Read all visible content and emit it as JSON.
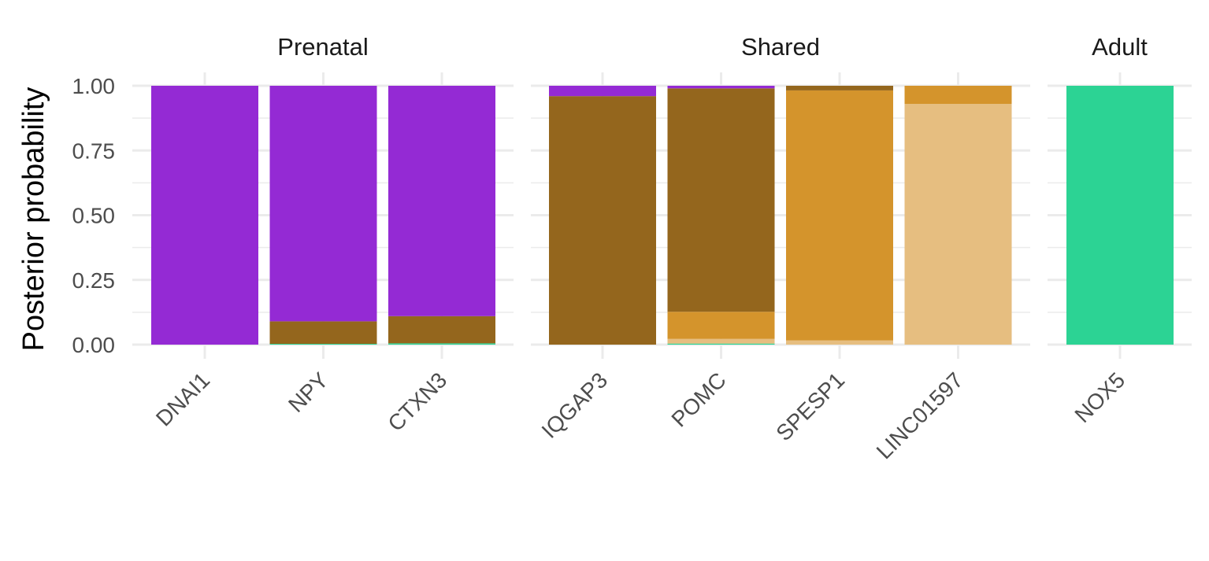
{
  "chart_data": {
    "type": "bar",
    "stacked": true,
    "ylabel": "Posterior probability",
    "xlabel": "",
    "ylim": [
      0,
      1
    ],
    "y_ticks": [
      "0.00",
      "0.25",
      "0.50",
      "0.75",
      "1.00"
    ],
    "grid": true,
    "legend": "none",
    "series_colors": [
      "#2cd394",
      "#e6be80",
      "#d4942c",
      "#94661d",
      "#942ad4"
    ],
    "panels": [
      {
        "title": "Prenatal",
        "categories": [
          "DNAI1",
          "NPY",
          "CTXN3"
        ],
        "stacks": [
          [
            {
              "value": 1.0,
              "color": "#942ad4"
            }
          ],
          [
            {
              "value": 0.003,
              "color": "#2cd394"
            },
            {
              "value": 0.087,
              "color": "#94661d"
            },
            {
              "value": 0.91,
              "color": "#942ad4"
            }
          ],
          [
            {
              "value": 0.005,
              "color": "#2cd394"
            },
            {
              "value": 0.105,
              "color": "#94661d"
            },
            {
              "value": 0.89,
              "color": "#942ad4"
            }
          ]
        ]
      },
      {
        "title": "Shared",
        "categories": [
          "IQGAP3",
          "POMC",
          "SPESP1",
          "LINC01597"
        ],
        "stacks": [
          [
            {
              "value": 0.96,
              "color": "#94661d"
            },
            {
              "value": 0.04,
              "color": "#942ad4"
            }
          ],
          [
            {
              "value": 0.004,
              "color": "#2cd394"
            },
            {
              "value": 0.018,
              "color": "#e6be80"
            },
            {
              "value": 0.105,
              "color": "#d4942c"
            },
            {
              "value": 0.863,
              "color": "#94661d"
            },
            {
              "value": 0.01,
              "color": "#942ad4"
            }
          ],
          [
            {
              "value": 0.016,
              "color": "#e6be80"
            },
            {
              "value": 0.966,
              "color": "#d4942c"
            },
            {
              "value": 0.018,
              "color": "#94661d"
            }
          ],
          [
            {
              "value": 0.93,
              "color": "#e6be80"
            },
            {
              "value": 0.07,
              "color": "#d4942c"
            }
          ]
        ]
      },
      {
        "title": "Adult",
        "categories": [
          "NOX5"
        ],
        "stacks": [
          [
            {
              "value": 1.0,
              "color": "#2cd394"
            }
          ]
        ]
      }
    ]
  }
}
